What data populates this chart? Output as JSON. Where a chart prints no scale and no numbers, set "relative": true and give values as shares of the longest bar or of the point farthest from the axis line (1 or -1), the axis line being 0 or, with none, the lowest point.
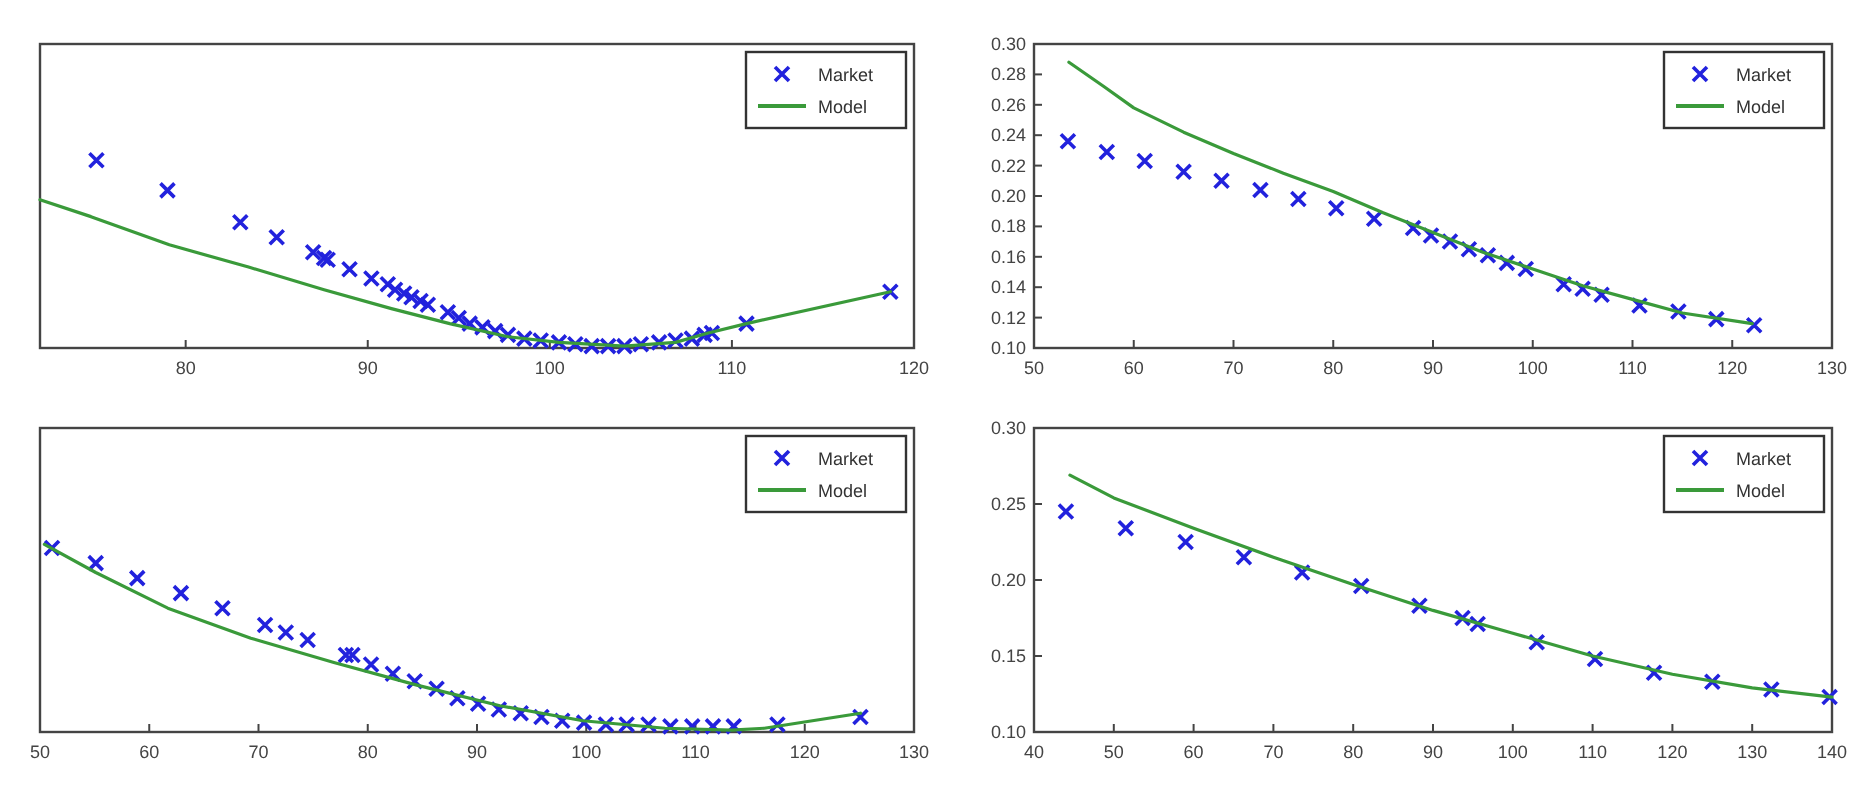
{
  "chart_data": [
    {
      "type": "scatter",
      "relative": true,
      "xlim": [
        72,
        120
      ],
      "xticks": [
        80,
        90,
        100,
        110,
        120
      ],
      "legend": "top right",
      "series": [
        {
          "name": "Market",
          "marker": "cross",
          "color": "#2222dd",
          "x": [
            75.1,
            79.0,
            83.0,
            85.0,
            87.0,
            87.6,
            87.8,
            89.0,
            90.2,
            91.1,
            91.5,
            92.0,
            92.4,
            92.9,
            93.3,
            94.4,
            95.0,
            95.6,
            96.3,
            97.0,
            97.7,
            98.6,
            99.5,
            100.5,
            101.4,
            102.3,
            103.2,
            104.1,
            105.0,
            106.0,
            106.9,
            107.8,
            108.5,
            108.9,
            110.8,
            118.7
          ],
          "values": [
            1,
            0.84,
            0.67,
            0.59,
            0.51,
            0.48,
            0.47,
            0.42,
            0.37,
            0.34,
            0.31,
            0.29,
            0.27,
            0.25,
            0.23,
            0.19,
            0.16,
            0.13,
            0.11,
            0.09,
            0.07,
            0.05,
            0.04,
            0.03,
            0.02,
            0.01,
            0.01,
            0.01,
            0.02,
            0.03,
            0.04,
            0.05,
            0.07,
            0.08,
            0.13,
            0.3
          ]
        },
        {
          "name": "Model",
          "type": "line",
          "marker": "none",
          "color": "#3a9a3a",
          "x": [
            72.0,
            74.8,
            79.1,
            83.5,
            87.6,
            91.3,
            94.5,
            97.7,
            100.5,
            104.1,
            106.9,
            108.7,
            110.8,
            118.7
          ],
          "values": [
            0.79,
            0.7,
            0.55,
            0.43,
            0.31,
            0.21,
            0.13,
            0.06,
            0.03,
            0.01,
            0.03,
            0.08,
            0.13,
            0.3
          ]
        }
      ]
    },
    {
      "type": "scatter",
      "xlim": [
        50,
        130
      ],
      "xticks": [
        50,
        60,
        70,
        80,
        90,
        100,
        110,
        120,
        130
      ],
      "ylim": [
        0.1,
        0.3
      ],
      "yticks": [
        {
          "value": 0.1,
          "label": "0.10"
        },
        {
          "value": 0.12,
          "label": "0.12"
        },
        {
          "value": 0.14,
          "label": "0.14"
        },
        {
          "value": 0.16,
          "label": "0.16"
        },
        {
          "value": 0.18,
          "label": "0.18"
        },
        {
          "value": 0.2,
          "label": "0.20"
        },
        {
          "value": 0.22,
          "label": "0.22"
        },
        {
          "value": 0.24,
          "label": "0.24"
        },
        {
          "value": 0.26,
          "label": "0.26"
        },
        {
          "value": 0.28,
          "label": "0.28"
        },
        {
          "value": 0.3,
          "label": "0.30"
        }
      ],
      "legend": "top right",
      "series": [
        {
          "name": "Market",
          "marker": "cross",
          "color": "#2222dd",
          "x": [
            53.4,
            57.3,
            61.1,
            65,
            68.8,
            72.7,
            76.5,
            80.3,
            84.1,
            88,
            89.8,
            91.7,
            93.6,
            95.5,
            97.4,
            99.3,
            103.1,
            105,
            106.9,
            110.7,
            114.6,
            118.4,
            122.2
          ],
          "values": [
            0.236,
            0.229,
            0.223,
            0.216,
            0.21,
            0.204,
            0.198,
            0.192,
            0.185,
            0.179,
            0.174,
            0.17,
            0.165,
            0.161,
            0.156,
            0.152,
            0.142,
            0.139,
            0.135,
            0.128,
            0.124,
            0.119,
            0.115
          ]
        },
        {
          "name": "Model",
          "type": "line",
          "marker": "none",
          "color": "#3a9a3a",
          "x": [
            53.5,
            57,
            60,
            65,
            70,
            75,
            80,
            85,
            90,
            95,
            100,
            105,
            110,
            115,
            122
          ],
          "values": [
            0.288,
            0.272,
            0.258,
            0.242,
            0.228,
            0.215,
            0.203,
            0.189,
            0.176,
            0.163,
            0.152,
            0.141,
            0.132,
            0.123,
            0.116
          ]
        }
      ]
    },
    {
      "type": "scatter",
      "relative": true,
      "xlim": [
        50,
        130
      ],
      "xticks": [
        50,
        60,
        70,
        80,
        90,
        100,
        110,
        120,
        130
      ],
      "legend": "top right",
      "series": [
        {
          "name": "Market",
          "marker": "cross",
          "color": "#2222dd",
          "x": [
            51.1,
            55.1,
            58.9,
            62.9,
            66.7,
            70.6,
            72.5,
            74.5,
            78.0,
            78.6,
            80.3,
            82.3,
            84.3,
            86.3,
            88.2,
            90.1,
            92.0,
            94.0,
            95.9,
            97.8,
            99.8,
            101.8,
            103.7,
            105.7,
            107.7,
            109.7,
            111.6,
            113.5,
            117.5,
            125.1
          ],
          "values": [
            0.98,
            0.9,
            0.82,
            0.74,
            0.66,
            0.57,
            0.53,
            0.49,
            0.41,
            0.41,
            0.36,
            0.31,
            0.27,
            0.23,
            0.18,
            0.15,
            0.12,
            0.1,
            0.08,
            0.06,
            0.05,
            0.04,
            0.04,
            0.04,
            0.03,
            0.03,
            0.03,
            0.03,
            0.04,
            0.08
          ]
        },
        {
          "name": "Model",
          "type": "line",
          "marker": "none",
          "color": "#3a9a3a",
          "x": [
            50.4,
            55.1,
            61.7,
            69.3,
            76.9,
            84.5,
            92.1,
            99.7,
            107.2,
            113.3,
            116.3,
            125.1
          ],
          "values": [
            1,
            0.85,
            0.66,
            0.5,
            0.37,
            0.25,
            0.14,
            0.06,
            0.02,
            0.01,
            0.02,
            0.1
          ]
        }
      ]
    },
    {
      "type": "scatter",
      "xlim": [
        40,
        140
      ],
      "xticks": [
        40,
        50,
        60,
        70,
        80,
        90,
        100,
        110,
        120,
        130,
        140
      ],
      "ylim": [
        0.1,
        0.3
      ],
      "yticks": [
        {
          "value": 0.1,
          "label": "0.10"
        },
        {
          "value": 0.15,
          "label": "0.15"
        },
        {
          "value": 0.2,
          "label": "0.20"
        },
        {
          "value": 0.25,
          "label": "0.25"
        },
        {
          "value": 0.3,
          "label": "0.30"
        }
      ],
      "legend": "top right",
      "series": [
        {
          "name": "Market",
          "marker": "cross",
          "color": "#2222dd",
          "x": [
            44,
            51.5,
            59,
            66.3,
            73.6,
            81,
            88.3,
            93.7,
            95.6,
            103,
            110.3,
            117.7,
            125,
            132.4,
            139.7
          ],
          "values": [
            0.245,
            0.234,
            0.225,
            0.215,
            0.205,
            0.196,
            0.183,
            0.175,
            0.171,
            0.159,
            0.148,
            0.139,
            0.133,
            0.128,
            0.123
          ]
        },
        {
          "name": "Model",
          "type": "line",
          "marker": "none",
          "color": "#3a9a3a",
          "x": [
            44.5,
            50,
            60,
            70,
            80,
            90,
            100,
            110,
            120,
            130,
            140
          ],
          "values": [
            0.269,
            0.254,
            0.234,
            0.215,
            0.197,
            0.18,
            0.165,
            0.15,
            0.138,
            0.129,
            0.123
          ]
        }
      ]
    }
  ]
}
